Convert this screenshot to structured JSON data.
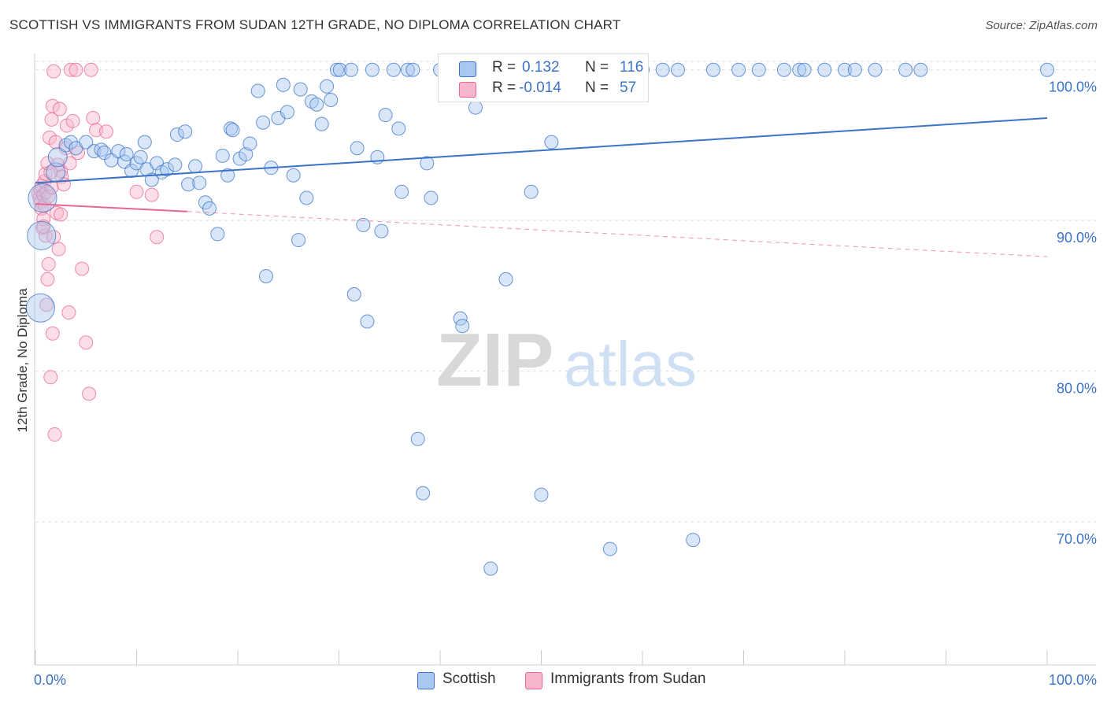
{
  "title": "SCOTTISH VS IMMIGRANTS FROM SUDAN 12TH GRADE, NO DIPLOMA CORRELATION CHART",
  "source": "Source: ZipAtlas.com",
  "watermark": {
    "zip": "ZIP",
    "atlas": "atlas"
  },
  "colors": {
    "blue": "#3a73c8",
    "blue_fill": "#a9c8f0",
    "pink": "#e8668f",
    "pink_fill": "#f6b6cb",
    "grid": "#dddddd"
  },
  "legend": {
    "scottish": {
      "r_label": "R =",
      "r_value": "0.132",
      "n_label": "N =",
      "n_value": "116"
    },
    "sudan": {
      "r_label": "R =",
      "r_value": "-0.014",
      "n_label": "N =",
      "n_value": "57"
    }
  },
  "bottom_legend": {
    "scottish": "Scottish",
    "sudan": "Immigrants from Sudan"
  },
  "chart_data": {
    "type": "scatter",
    "title": "SCOTTISH VS IMMIGRANTS FROM SUDAN 12TH GRADE, NO DIPLOMA CORRELATION CHART",
    "xlabel": "",
    "ylabel": "12th Grade, No Diploma",
    "xlim": [
      0,
      100
    ],
    "ylim": [
      60.5,
      101.5
    ],
    "x_tick_labels": [
      "0.0%",
      "100.0%"
    ],
    "y_ticks": [
      70,
      80,
      90,
      100
    ],
    "y_tick_labels": [
      "70.0%",
      "80.0%",
      "90.0%",
      "100.0%"
    ],
    "grid": true,
    "series": [
      {
        "name": "Scottish",
        "color": "#3a73c8",
        "trend": {
          "x": [
            0,
            100
          ],
          "y": [
            92.5,
            96.8
          ],
          "style": "solid"
        },
        "points": [
          [
            0.5,
            84.2,
            3
          ],
          [
            0.6,
            89.0,
            3
          ],
          [
            0.7,
            91.5,
            3
          ],
          [
            2.0,
            93.2,
            2
          ],
          [
            2.2,
            94.2,
            2
          ],
          [
            3.0,
            95.0,
            1
          ],
          [
            3.5,
            95.2,
            1
          ],
          [
            4.0,
            94.8,
            1
          ],
          [
            5.0,
            95.2,
            1
          ],
          [
            5.8,
            94.6,
            1
          ],
          [
            6.5,
            94.7,
            1
          ],
          [
            6.8,
            94.5,
            1
          ],
          [
            7.5,
            94.0,
            1
          ],
          [
            8.2,
            94.6,
            1
          ],
          [
            8.8,
            93.9,
            1
          ],
          [
            9.0,
            94.4,
            1
          ],
          [
            9.5,
            93.3,
            1
          ],
          [
            10.0,
            93.8,
            1
          ],
          [
            10.4,
            94.2,
            1
          ],
          [
            11.0,
            93.4,
            1
          ],
          [
            10.8,
            95.2,
            1
          ],
          [
            11.5,
            92.7,
            1
          ],
          [
            12.0,
            93.8,
            1
          ],
          [
            12.5,
            93.2,
            1
          ],
          [
            13.0,
            93.4,
            1
          ],
          [
            13.8,
            93.7,
            1
          ],
          [
            14.0,
            95.7,
            1
          ],
          [
            14.8,
            95.9,
            1
          ],
          [
            15.1,
            92.4,
            1
          ],
          [
            15.8,
            93.6,
            1
          ],
          [
            16.2,
            92.5,
            1
          ],
          [
            16.8,
            91.2,
            1
          ],
          [
            17.2,
            90.8,
            1
          ],
          [
            18.0,
            89.1,
            1
          ],
          [
            18.5,
            94.3,
            1
          ],
          [
            19.0,
            93.0,
            1
          ],
          [
            19.3,
            96.1,
            1
          ],
          [
            19.5,
            96.0,
            1
          ],
          [
            20.2,
            94.1,
            1
          ],
          [
            20.8,
            94.4,
            1
          ],
          [
            21.2,
            95.1,
            1
          ],
          [
            22.0,
            98.6,
            1
          ],
          [
            22.5,
            96.5,
            1
          ],
          [
            22.8,
            86.3,
            1
          ],
          [
            23.3,
            93.5,
            1
          ],
          [
            24.0,
            96.8,
            1
          ],
          [
            24.5,
            99.0,
            1
          ],
          [
            24.9,
            97.2,
            1
          ],
          [
            25.5,
            93.0,
            1
          ],
          [
            26.0,
            88.7,
            1
          ],
          [
            26.2,
            98.7,
            1
          ],
          [
            26.8,
            91.5,
            1
          ],
          [
            27.3,
            97.9,
            1
          ],
          [
            27.8,
            97.7,
            1
          ],
          [
            28.3,
            96.4,
            1
          ],
          [
            28.8,
            98.9,
            1
          ],
          [
            29.2,
            98.0,
            1
          ],
          [
            29.8,
            100.0,
            1
          ],
          [
            30.1,
            100.0,
            1
          ],
          [
            31.2,
            100.0,
            1
          ],
          [
            31.5,
            85.1,
            1
          ],
          [
            31.8,
            94.8,
            1
          ],
          [
            32.4,
            89.7,
            1
          ],
          [
            32.8,
            83.3,
            1
          ],
          [
            33.3,
            100.0,
            1
          ],
          [
            33.8,
            94.2,
            1
          ],
          [
            34.2,
            89.3,
            1
          ],
          [
            34.6,
            97.0,
            1
          ],
          [
            35.4,
            100.0,
            1
          ],
          [
            35.9,
            96.1,
            1
          ],
          [
            36.2,
            91.9,
            1
          ],
          [
            36.8,
            100.0,
            1
          ],
          [
            37.3,
            100.0,
            1
          ],
          [
            37.8,
            75.5,
            1
          ],
          [
            38.3,
            71.9,
            1
          ],
          [
            38.7,
            93.8,
            1
          ],
          [
            39.1,
            91.5,
            1
          ],
          [
            40.0,
            100.0,
            1
          ],
          [
            41.2,
            100.0,
            1
          ],
          [
            42.0,
            83.5,
            1
          ],
          [
            42.2,
            83.0,
            1
          ],
          [
            42.5,
            100.0,
            1
          ],
          [
            43.5,
            97.5,
            1
          ],
          [
            45.0,
            66.9,
            1
          ],
          [
            45.8,
            98.6,
            1
          ],
          [
            46.5,
            86.1,
            1
          ],
          [
            47.0,
            100.0,
            1
          ],
          [
            48.5,
            100.0,
            1
          ],
          [
            49.0,
            91.9,
            1
          ],
          [
            50.0,
            71.8,
            1
          ],
          [
            51.0,
            95.2,
            1
          ],
          [
            53.5,
            100.0,
            1
          ],
          [
            55.5,
            100.0,
            1
          ],
          [
            56.8,
            68.2,
            1
          ],
          [
            58.0,
            100.0,
            1
          ],
          [
            60.0,
            100.0,
            1
          ],
          [
            62.0,
            100.0,
            1
          ],
          [
            63.5,
            100.0,
            1
          ],
          [
            65.0,
            68.8,
            1
          ],
          [
            67.0,
            100.0,
            1
          ],
          [
            69.5,
            100.0,
            1
          ],
          [
            71.5,
            100.0,
            1
          ],
          [
            74.0,
            100.0,
            1
          ],
          [
            75.5,
            100.0,
            1
          ],
          [
            76.0,
            100.0,
            1
          ],
          [
            78.0,
            100.0,
            1
          ],
          [
            80.0,
            100.0,
            1
          ],
          [
            81.0,
            100.0,
            1
          ],
          [
            83.0,
            100.0,
            1
          ],
          [
            86.0,
            100.0,
            1
          ],
          [
            87.5,
            100.0,
            1
          ],
          [
            100.0,
            100.0,
            1
          ]
        ]
      },
      {
        "name": "Immigrants from Sudan",
        "color": "#e8668f",
        "trend": {
          "x": [
            0,
            15,
            100
          ],
          "y": [
            91.1,
            90.6,
            87.6
          ],
          "style": "solid-then-dashed"
        },
        "points": [
          [
            0.3,
            91.8,
            1
          ],
          [
            0.4,
            91.5,
            1
          ],
          [
            0.5,
            92.0,
            1
          ],
          [
            0.5,
            91.2,
            1
          ],
          [
            0.6,
            90.8,
            1
          ],
          [
            0.6,
            92.3,
            1
          ],
          [
            0.7,
            89.5,
            1
          ],
          [
            0.8,
            91.7,
            1
          ],
          [
            0.8,
            90.1,
            1
          ],
          [
            0.9,
            92.6,
            1
          ],
          [
            0.9,
            91.0,
            1
          ],
          [
            1.0,
            93.1,
            1
          ],
          [
            1.0,
            89.0,
            1
          ],
          [
            1.1,
            91.9,
            1
          ],
          [
            1.1,
            84.4,
            1
          ],
          [
            1.2,
            86.1,
            1
          ],
          [
            1.2,
            93.8,
            1
          ],
          [
            1.3,
            91.6,
            1
          ],
          [
            1.3,
            87.1,
            1
          ],
          [
            1.4,
            95.5,
            1
          ],
          [
            1.5,
            79.6,
            1
          ],
          [
            1.6,
            92.2,
            1
          ],
          [
            1.6,
            96.7,
            1
          ],
          [
            1.7,
            97.6,
            1
          ],
          [
            1.7,
            82.5,
            1
          ],
          [
            1.8,
            88.9,
            1
          ],
          [
            1.8,
            99.9,
            1
          ],
          [
            1.9,
            75.8,
            1
          ],
          [
            2.0,
            95.2,
            1
          ],
          [
            2.1,
            90.5,
            1
          ],
          [
            2.2,
            93.7,
            1
          ],
          [
            2.3,
            88.1,
            1
          ],
          [
            2.4,
            97.4,
            1
          ],
          [
            2.5,
            93.3,
            1
          ],
          [
            2.6,
            92.9,
            1
          ],
          [
            2.8,
            92.4,
            1
          ],
          [
            3.0,
            94.8,
            1
          ],
          [
            3.1,
            96.3,
            1
          ],
          [
            3.3,
            83.9,
            1
          ],
          [
            3.4,
            93.8,
            1
          ],
          [
            3.5,
            100.0,
            1
          ],
          [
            3.7,
            96.6,
            1
          ],
          [
            4.0,
            100.0,
            1
          ],
          [
            4.2,
            94.5,
            1
          ],
          [
            4.6,
            86.8,
            1
          ],
          [
            5.3,
            78.5,
            1
          ],
          [
            5.7,
            96.8,
            1
          ],
          [
            5.5,
            100.0,
            1
          ],
          [
            6.0,
            96.0,
            1
          ],
          [
            7.0,
            95.9,
            1
          ],
          [
            5.0,
            81.9,
            1
          ],
          [
            10.0,
            91.9,
            1
          ],
          [
            11.5,
            91.7,
            1
          ],
          [
            12.0,
            88.9,
            1
          ],
          [
            1.5,
            93.2,
            1
          ],
          [
            2.5,
            90.4,
            1
          ],
          [
            0.8,
            89.6,
            1
          ]
        ]
      }
    ]
  }
}
